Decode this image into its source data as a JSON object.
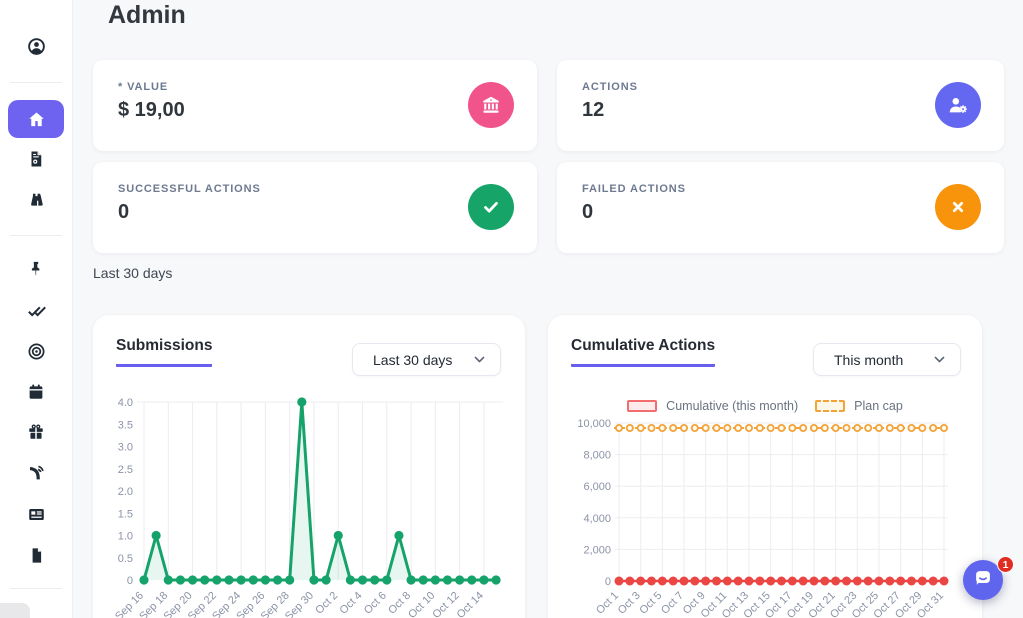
{
  "header": {
    "title": "Admin"
  },
  "period_note": "Last 30 days",
  "sidebar": {
    "items": [
      "user-circle",
      "home",
      "file-invoice",
      "binoculars",
      "thumbtack",
      "double-check",
      "bullseye",
      "calendar",
      "gift",
      "blog",
      "newspaper",
      "file"
    ],
    "active_item": "home"
  },
  "stat_cards": [
    {
      "label": "* VALUE",
      "value": "$ 19,00",
      "icon": "landmark-icon",
      "color": "#f0548b"
    },
    {
      "label": "ACTIONS",
      "value": "12",
      "icon": "user-gear-icon",
      "color": "#6468f0"
    },
    {
      "label": "SUCCESSFUL ACTIONS",
      "value": "0",
      "icon": "check-icon",
      "color": "#16a469"
    },
    {
      "label": "FAILED ACTIONS",
      "value": "0",
      "icon": "xmark-icon",
      "color": "#f7940b"
    }
  ],
  "colors": {
    "accent_purple": "#6a5ef0",
    "sidebar_active_bg": "#6e63f1",
    "chart_green": "#16a36b",
    "chart_red": "#ea4744",
    "plan_cap_orange": "#f2a43b",
    "chat_bubble": "#6065ee",
    "badge_red": "#e12d21"
  },
  "chat": {
    "badge": "1"
  },
  "chart_data": [
    {
      "type": "line",
      "title": "Submissions",
      "range_selector": "Last 30 days",
      "x": [
        "Sep 16",
        "Sep 17",
        "Sep 18",
        "Sep 19",
        "Sep 20",
        "Sep 21",
        "Sep 22",
        "Sep 23",
        "Sep 24",
        "Sep 25",
        "Sep 26",
        "Sep 27",
        "Sep 28",
        "Sep 29",
        "Sep 30",
        "Oct 1",
        "Oct 2",
        "Oct 3",
        "Oct 4",
        "Oct 5",
        "Oct 6",
        "Oct 7",
        "Oct 8",
        "Oct 9",
        "Oct 10",
        "Oct 11",
        "Oct 12",
        "Oct 13",
        "Oct 14",
        "Oct 15"
      ],
      "values": [
        0,
        1,
        0,
        0,
        0,
        0,
        0,
        0,
        0,
        0,
        0,
        0,
        0,
        4,
        0,
        0,
        1,
        0,
        0,
        0,
        0,
        1,
        0,
        0,
        0,
        0,
        0,
        0,
        0,
        0
      ],
      "ylim": [
        0,
        4
      ],
      "yticks": [
        0,
        0.5,
        1,
        1.5,
        2,
        2.5,
        3,
        3.5,
        4
      ],
      "ytick_labels": [
        "0",
        "0.5",
        "1.0",
        "1.5",
        "2.0",
        "2.5",
        "3.0",
        "3.5",
        "4.0"
      ],
      "xtick_every": 2,
      "line_color": "#16a36b",
      "fill_color": "rgba(22,163,107,0.10)",
      "grid_color": "#ececf1",
      "legend_position": "none"
    },
    {
      "type": "line",
      "title": "Cumulative Actions",
      "range_selector": "This month",
      "x": [
        "Oct 1",
        "Oct 2",
        "Oct 3",
        "Oct 4",
        "Oct 5",
        "Oct 6",
        "Oct 7",
        "Oct 8",
        "Oct 9",
        "Oct 10",
        "Oct 11",
        "Oct 12",
        "Oct 13",
        "Oct 14",
        "Oct 15",
        "Oct 16",
        "Oct 17",
        "Oct 18",
        "Oct 19",
        "Oct 20",
        "Oct 21",
        "Oct 22",
        "Oct 23",
        "Oct 24",
        "Oct 25",
        "Oct 26",
        "Oct 27",
        "Oct 28",
        "Oct 29",
        "Oct 30",
        "Oct 31"
      ],
      "series": [
        {
          "name": "Cumulative (this month)",
          "values": [
            0,
            0,
            0,
            0,
            0,
            0,
            0,
            0,
            0,
            0,
            0,
            0,
            0,
            0,
            0,
            0,
            0,
            0,
            0,
            0,
            0,
            0,
            0,
            0,
            0,
            0,
            0,
            0,
            0,
            0,
            0
          ],
          "color": "#ea4744",
          "style": "solid"
        },
        {
          "name": "Plan cap",
          "constant": 10000,
          "color": "#f2a43b",
          "style": "dashed"
        }
      ],
      "ylim": [
        0,
        10000
      ],
      "yticks": [
        0,
        2000,
        4000,
        6000,
        8000,
        10000
      ],
      "ytick_labels": [
        "0",
        "2,000",
        "4,000",
        "6,000",
        "8,000",
        "10,000"
      ],
      "xtick_every": 2,
      "grid_color": "#ededf2",
      "legend_position": "top"
    }
  ]
}
